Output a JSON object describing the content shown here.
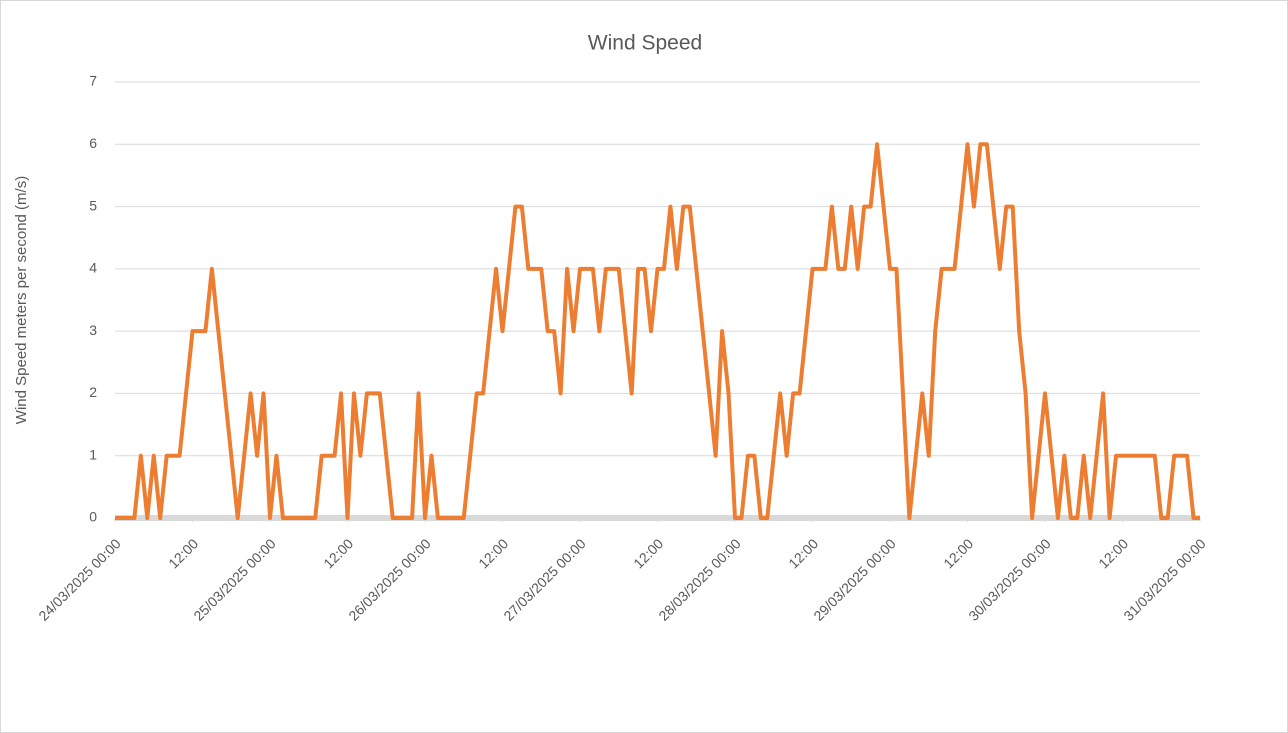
{
  "chart_data": {
    "type": "line",
    "title": "Wind Speed",
    "y_label": "Wind Speed meters per second (m/s)",
    "x": [
      "24/03/2025 00:00",
      "24/03/2025 01:00",
      "24/03/2025 02:00",
      "24/03/2025 03:00",
      "24/03/2025 04:00",
      "24/03/2025 05:00",
      "24/03/2025 06:00",
      "24/03/2025 07:00",
      "24/03/2025 08:00",
      "24/03/2025 09:00",
      "24/03/2025 10:00",
      "24/03/2025 11:00",
      "24/03/2025 12:00",
      "24/03/2025 13:00",
      "24/03/2025 14:00",
      "24/03/2025 15:00",
      "24/03/2025 16:00",
      "24/03/2025 17:00",
      "24/03/2025 18:00",
      "24/03/2025 19:00",
      "24/03/2025 20:00",
      "24/03/2025 21:00",
      "24/03/2025 22:00",
      "24/03/2025 23:00",
      "25/03/2025 00:00",
      "25/03/2025 01:00",
      "25/03/2025 02:00",
      "25/03/2025 03:00",
      "25/03/2025 04:00",
      "25/03/2025 05:00",
      "25/03/2025 06:00",
      "25/03/2025 07:00",
      "25/03/2025 08:00",
      "25/03/2025 09:00",
      "25/03/2025 10:00",
      "25/03/2025 11:00",
      "25/03/2025 12:00",
      "25/03/2025 13:00",
      "25/03/2025 14:00",
      "25/03/2025 15:00",
      "25/03/2025 16:00",
      "25/03/2025 17:00",
      "25/03/2025 18:00",
      "25/03/2025 19:00",
      "25/03/2025 20:00",
      "25/03/2025 21:00",
      "25/03/2025 22:00",
      "25/03/2025 23:00",
      "26/03/2025 00:00",
      "26/03/2025 01:00",
      "26/03/2025 02:00",
      "26/03/2025 03:00",
      "26/03/2025 04:00",
      "26/03/2025 05:00",
      "26/03/2025 06:00",
      "26/03/2025 07:00",
      "26/03/2025 08:00",
      "26/03/2025 09:00",
      "26/03/2025 10:00",
      "26/03/2025 11:00",
      "26/03/2025 12:00",
      "26/03/2025 13:00",
      "26/03/2025 14:00",
      "26/03/2025 15:00",
      "26/03/2025 16:00",
      "26/03/2025 17:00",
      "26/03/2025 18:00",
      "26/03/2025 19:00",
      "26/03/2025 20:00",
      "26/03/2025 21:00",
      "26/03/2025 22:00",
      "26/03/2025 23:00",
      "27/03/2025 00:00",
      "27/03/2025 01:00",
      "27/03/2025 02:00",
      "27/03/2025 03:00",
      "27/03/2025 04:00",
      "27/03/2025 05:00",
      "27/03/2025 06:00",
      "27/03/2025 07:00",
      "27/03/2025 08:00",
      "27/03/2025 09:00",
      "27/03/2025 10:00",
      "27/03/2025 11:00",
      "27/03/2025 12:00",
      "27/03/2025 13:00",
      "27/03/2025 14:00",
      "27/03/2025 15:00",
      "27/03/2025 16:00",
      "27/03/2025 17:00",
      "27/03/2025 18:00",
      "27/03/2025 19:00",
      "27/03/2025 20:00",
      "27/03/2025 21:00",
      "27/03/2025 22:00",
      "27/03/2025 23:00",
      "28/03/2025 00:00",
      "28/03/2025 01:00",
      "28/03/2025 02:00",
      "28/03/2025 03:00",
      "28/03/2025 04:00",
      "28/03/2025 05:00",
      "28/03/2025 06:00",
      "28/03/2025 07:00",
      "28/03/2025 08:00",
      "28/03/2025 09:00",
      "28/03/2025 10:00",
      "28/03/2025 11:00",
      "28/03/2025 12:00",
      "28/03/2025 13:00",
      "28/03/2025 14:00",
      "28/03/2025 15:00",
      "28/03/2025 16:00",
      "28/03/2025 17:00",
      "28/03/2025 18:00",
      "28/03/2025 19:00",
      "28/03/2025 20:00",
      "28/03/2025 21:00",
      "28/03/2025 22:00",
      "28/03/2025 23:00",
      "29/03/2025 00:00",
      "29/03/2025 01:00",
      "29/03/2025 02:00",
      "29/03/2025 03:00",
      "29/03/2025 04:00",
      "29/03/2025 05:00",
      "29/03/2025 06:00",
      "29/03/2025 07:00",
      "29/03/2025 08:00",
      "29/03/2025 09:00",
      "29/03/2025 10:00",
      "29/03/2025 11:00",
      "29/03/2025 12:00",
      "29/03/2025 13:00",
      "29/03/2025 14:00",
      "29/03/2025 15:00",
      "29/03/2025 16:00",
      "29/03/2025 17:00",
      "29/03/2025 18:00",
      "29/03/2025 19:00",
      "29/03/2025 20:00",
      "29/03/2025 21:00",
      "29/03/2025 22:00",
      "29/03/2025 23:00",
      "30/03/2025 00:00",
      "30/03/2025 01:00",
      "30/03/2025 02:00",
      "30/03/2025 03:00",
      "30/03/2025 04:00",
      "30/03/2025 05:00",
      "30/03/2025 06:00",
      "30/03/2025 07:00",
      "30/03/2025 08:00",
      "30/03/2025 09:00",
      "30/03/2025 10:00",
      "30/03/2025 11:00",
      "30/03/2025 12:00",
      "30/03/2025 13:00",
      "30/03/2025 14:00",
      "30/03/2025 15:00",
      "30/03/2025 16:00",
      "30/03/2025 17:00",
      "30/03/2025 18:00",
      "30/03/2025 19:00",
      "30/03/2025 20:00",
      "30/03/2025 21:00",
      "30/03/2025 22:00",
      "30/03/2025 23:00",
      "31/03/2025 00:00"
    ],
    "series": [
      {
        "name": "Wind Speed",
        "color": "#ed7d31",
        "values": [
          0,
          0,
          0,
          0,
          1,
          0,
          1,
          0,
          1,
          1,
          1,
          2,
          3,
          3,
          3,
          4,
          3,
          2,
          1,
          0,
          1,
          2,
          1,
          2,
          0,
          1,
          0,
          0,
          0,
          0,
          0,
          0,
          1,
          1,
          1,
          2,
          0,
          2,
          1,
          2,
          2,
          2,
          1,
          0,
          0,
          0,
          0,
          2,
          0,
          1,
          0,
          0,
          0,
          0,
          0,
          1,
          2,
          2,
          3,
          4,
          3,
          4,
          5,
          5,
          4,
          4,
          4,
          3,
          3,
          2,
          4,
          3,
          4,
          4,
          4,
          3,
          4,
          4,
          4,
          3,
          2,
          4,
          4,
          3,
          4,
          4,
          5,
          4,
          5,
          5,
          4,
          3,
          2,
          1,
          3,
          2,
          0,
          0,
          1,
          1,
          0,
          0,
          1,
          2,
          1,
          2,
          2,
          3,
          4,
          4,
          4,
          5,
          4,
          4,
          5,
          4,
          5,
          5,
          6,
          5,
          4,
          4,
          2,
          0,
          1,
          2,
          1,
          3,
          4,
          4,
          4,
          5,
          6,
          5,
          6,
          6,
          5,
          4,
          5,
          5,
          3,
          2,
          0,
          1,
          2,
          1,
          0,
          1,
          0,
          0,
          1,
          0,
          1,
          2,
          0,
          1,
          1,
          1,
          1,
          1,
          1,
          1,
          0,
          0,
          1,
          1,
          1,
          0,
          0
        ]
      }
    ],
    "xlim": [
      "24/03/2025 00:00",
      "31/03/2025 00:00"
    ],
    "xticks": [
      "24/03/2025 00:00",
      {
        "value": "24/03/2025 12:00",
        "label": "12:00"
      },
      "25/03/2025 00:00",
      {
        "value": "25/03/2025 12:00",
        "label": "12:00"
      },
      "26/03/2025 00:00",
      {
        "value": "26/03/2025 12:00",
        "label": "12:00"
      },
      "27/03/2025 00:00",
      {
        "value": "27/03/2025 12:00",
        "label": "12:00"
      },
      "28/03/2025 00:00",
      {
        "value": "28/03/2025 12:00",
        "label": "12:00"
      },
      "29/03/2025 00:00",
      {
        "value": "29/03/2025 12:00",
        "label": "12:00"
      },
      "30/03/2025 00:00",
      {
        "value": "30/03/2025 12:00",
        "label": "12:00"
      },
      "31/03/2025 00:00"
    ],
    "ylim": [
      0,
      7
    ],
    "yticks": [
      0,
      1,
      2,
      3,
      4,
      5,
      6,
      7
    ],
    "grid": true
  }
}
